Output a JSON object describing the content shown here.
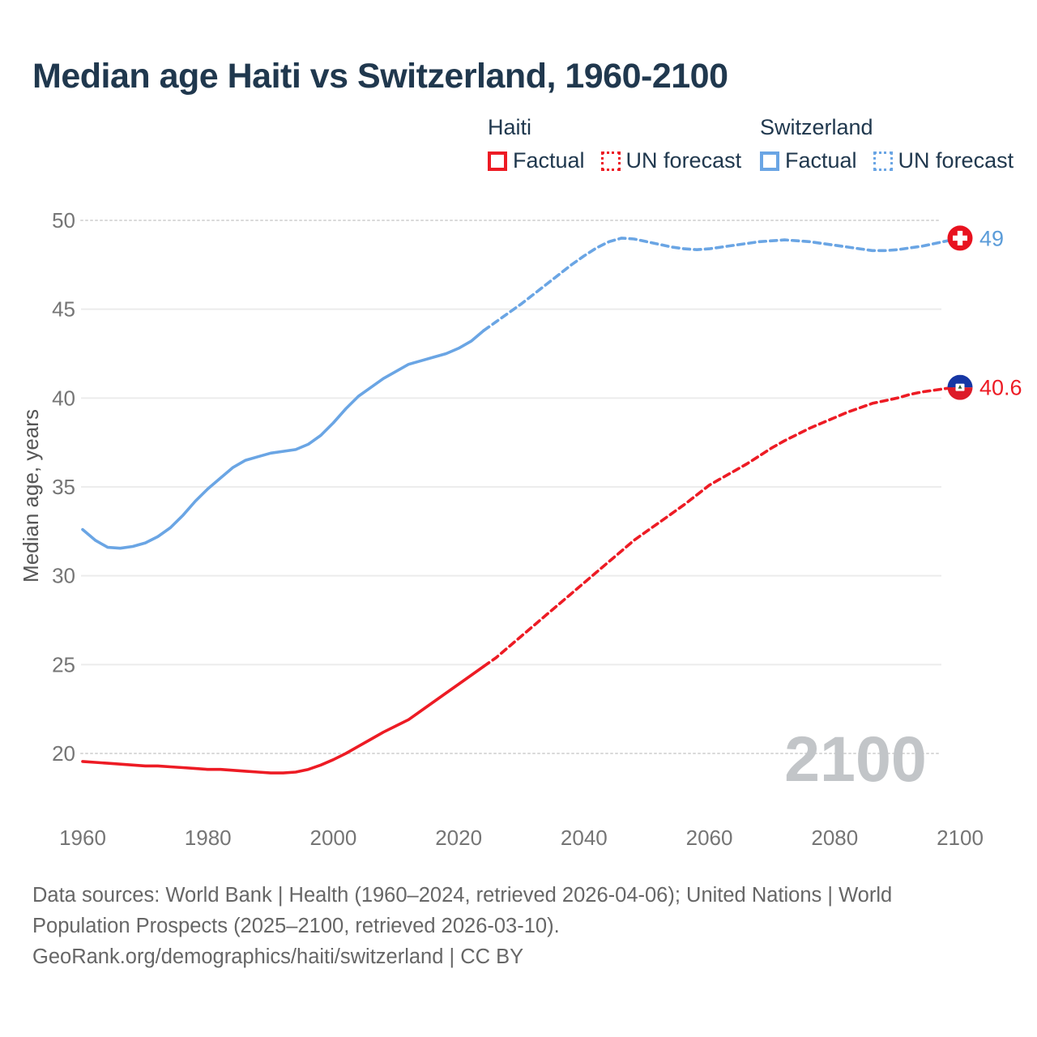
{
  "page": {
    "title": "Median age Haiti vs Switzerland, 1960-2100"
  },
  "legend": {
    "groups": [
      {
        "label": "Haiti",
        "color": "#ed1b24",
        "items": [
          {
            "label": "Factual",
            "style": "solid"
          },
          {
            "label": "UN forecast",
            "style": "dashed"
          }
        ]
      },
      {
        "label": "Switzerland",
        "color": "#6aa5e4",
        "items": [
          {
            "label": "Factual",
            "style": "solid"
          },
          {
            "label": "UN forecast",
            "style": "dashed"
          }
        ]
      }
    ]
  },
  "chart_data": {
    "type": "line",
    "title": "Median age Haiti vs Switzerland, 1960-2100",
    "xlabel": "",
    "ylabel": "Median age, years",
    "xlim": [
      1960,
      2100
    ],
    "ylim": [
      20,
      50
    ],
    "grid": true,
    "legend_position": "top-right",
    "x_ticks": [
      1960,
      1980,
      2000,
      2020,
      2040,
      2060,
      2080,
      2100
    ],
    "y_ticks": [
      20,
      25,
      30,
      35,
      40,
      45,
      50
    ],
    "watermark": "2100",
    "series": [
      {
        "name": "Haiti Factual",
        "style": "solid",
        "color": "#ed1b24",
        "points": [
          [
            1960,
            19.55
          ],
          [
            1962,
            19.5
          ],
          [
            1964,
            19.45
          ],
          [
            1966,
            19.4
          ],
          [
            1968,
            19.35
          ],
          [
            1970,
            19.3
          ],
          [
            1972,
            19.3
          ],
          [
            1974,
            19.25
          ],
          [
            1976,
            19.2
          ],
          [
            1978,
            19.15
          ],
          [
            1980,
            19.1
          ],
          [
            1982,
            19.1
          ],
          [
            1984,
            19.05
          ],
          [
            1986,
            19.0
          ],
          [
            1988,
            18.95
          ],
          [
            1990,
            18.9
          ],
          [
            1992,
            18.9
          ],
          [
            1994,
            18.95
          ],
          [
            1996,
            19.1
          ],
          [
            1998,
            19.35
          ],
          [
            2000,
            19.65
          ],
          [
            2002,
            20.0
          ],
          [
            2004,
            20.4
          ],
          [
            2006,
            20.8
          ],
          [
            2008,
            21.2
          ],
          [
            2010,
            21.55
          ],
          [
            2012,
            21.9
          ],
          [
            2014,
            22.4
          ],
          [
            2016,
            22.9
          ],
          [
            2018,
            23.4
          ],
          [
            2020,
            23.9
          ],
          [
            2022,
            24.4
          ],
          [
            2024,
            24.9
          ]
        ]
      },
      {
        "name": "Haiti UN forecast",
        "style": "dashed",
        "color": "#ed1b24",
        "points": [
          [
            2024,
            24.9
          ],
          [
            2026,
            25.4
          ],
          [
            2028,
            26.0
          ],
          [
            2030,
            26.6
          ],
          [
            2032,
            27.2
          ],
          [
            2034,
            27.8
          ],
          [
            2036,
            28.4
          ],
          [
            2038,
            29.0
          ],
          [
            2040,
            29.6
          ],
          [
            2042,
            30.2
          ],
          [
            2044,
            30.8
          ],
          [
            2046,
            31.4
          ],
          [
            2048,
            32.0
          ],
          [
            2050,
            32.5
          ],
          [
            2052,
            33.0
          ],
          [
            2054,
            33.5
          ],
          [
            2056,
            34.0
          ],
          [
            2058,
            34.55
          ],
          [
            2060,
            35.1
          ],
          [
            2062,
            35.5
          ],
          [
            2064,
            35.9
          ],
          [
            2066,
            36.3
          ],
          [
            2068,
            36.75
          ],
          [
            2070,
            37.2
          ],
          [
            2072,
            37.6
          ],
          [
            2074,
            37.95
          ],
          [
            2076,
            38.3
          ],
          [
            2078,
            38.6
          ],
          [
            2080,
            38.9
          ],
          [
            2082,
            39.2
          ],
          [
            2084,
            39.45
          ],
          [
            2086,
            39.7
          ],
          [
            2088,
            39.85
          ],
          [
            2090,
            40.0
          ],
          [
            2092,
            40.2
          ],
          [
            2094,
            40.35
          ],
          [
            2096,
            40.45
          ],
          [
            2098,
            40.55
          ],
          [
            2100,
            40.6
          ]
        ]
      },
      {
        "name": "Switzerland Factual",
        "style": "solid",
        "color": "#6aa5e4",
        "points": [
          [
            1960,
            32.6
          ],
          [
            1962,
            32.0
          ],
          [
            1964,
            31.6
          ],
          [
            1966,
            31.55
          ],
          [
            1968,
            31.65
          ],
          [
            1970,
            31.85
          ],
          [
            1972,
            32.2
          ],
          [
            1974,
            32.7
          ],
          [
            1976,
            33.4
          ],
          [
            1978,
            34.2
          ],
          [
            1980,
            34.9
          ],
          [
            1982,
            35.5
          ],
          [
            1984,
            36.1
          ],
          [
            1986,
            36.5
          ],
          [
            1988,
            36.7
          ],
          [
            1990,
            36.9
          ],
          [
            1992,
            37.0
          ],
          [
            1994,
            37.1
          ],
          [
            1996,
            37.4
          ],
          [
            1998,
            37.9
          ],
          [
            2000,
            38.6
          ],
          [
            2002,
            39.4
          ],
          [
            2004,
            40.1
          ],
          [
            2006,
            40.6
          ],
          [
            2008,
            41.1
          ],
          [
            2010,
            41.5
          ],
          [
            2012,
            41.9
          ],
          [
            2014,
            42.1
          ],
          [
            2016,
            42.3
          ],
          [
            2018,
            42.5
          ],
          [
            2020,
            42.8
          ],
          [
            2022,
            43.2
          ],
          [
            2024,
            43.8
          ]
        ]
      },
      {
        "name": "Switzerland UN forecast",
        "style": "dashed",
        "color": "#6aa5e4",
        "points": [
          [
            2024,
            43.8
          ],
          [
            2026,
            44.3
          ],
          [
            2028,
            44.8
          ],
          [
            2030,
            45.3
          ],
          [
            2032,
            45.85
          ],
          [
            2034,
            46.4
          ],
          [
            2036,
            46.95
          ],
          [
            2038,
            47.5
          ],
          [
            2040,
            48.0
          ],
          [
            2042,
            48.45
          ],
          [
            2044,
            48.8
          ],
          [
            2046,
            49.0
          ],
          [
            2048,
            48.95
          ],
          [
            2050,
            48.8
          ],
          [
            2052,
            48.65
          ],
          [
            2054,
            48.5
          ],
          [
            2056,
            48.4
          ],
          [
            2058,
            48.35
          ],
          [
            2060,
            48.4
          ],
          [
            2062,
            48.5
          ],
          [
            2064,
            48.6
          ],
          [
            2066,
            48.7
          ],
          [
            2068,
            48.8
          ],
          [
            2070,
            48.85
          ],
          [
            2072,
            48.9
          ],
          [
            2074,
            48.85
          ],
          [
            2076,
            48.8
          ],
          [
            2078,
            48.7
          ],
          [
            2080,
            48.6
          ],
          [
            2082,
            48.5
          ],
          [
            2084,
            48.4
          ],
          [
            2086,
            48.3
          ],
          [
            2088,
            48.3
          ],
          [
            2090,
            48.35
          ],
          [
            2092,
            48.45
          ],
          [
            2094,
            48.55
          ],
          [
            2096,
            48.7
          ],
          [
            2098,
            48.85
          ],
          [
            2100,
            49.0
          ]
        ]
      }
    ],
    "end_markers": [
      {
        "series": "Switzerland",
        "flag": "switzerland",
        "year": 2100,
        "value": 49,
        "label": "49",
        "label_color": "#5b9cd9"
      },
      {
        "series": "Haiti",
        "flag": "haiti",
        "year": 2100,
        "value": 40.6,
        "label": "40.6",
        "label_color": "#ed1b24"
      }
    ],
    "flags": {
      "switzerland": {
        "bg": "#e8121f",
        "cross": "#ffffff"
      },
      "haiti": {
        "top": "#1636a4",
        "bottom": "#dd1c29",
        "emblem_bg": "#ffffff",
        "emblem_mark": "#2f5d31"
      }
    },
    "colors": {
      "grid": "#ececec",
      "grid_boundary": "#d9d9d9",
      "tick_label": "#757575",
      "axis_title": "#555555",
      "watermark": "#c2c5c8"
    }
  },
  "footer": {
    "lines": [
      "Data sources: World Bank | Health (1960–2024, retrieved 2026-04-06); United Nations | World",
      "Population Prospects (2025–2100, retrieved 2026-03-10).",
      "GeoRank.org/demographics/haiti/switzerland | CC BY"
    ]
  }
}
